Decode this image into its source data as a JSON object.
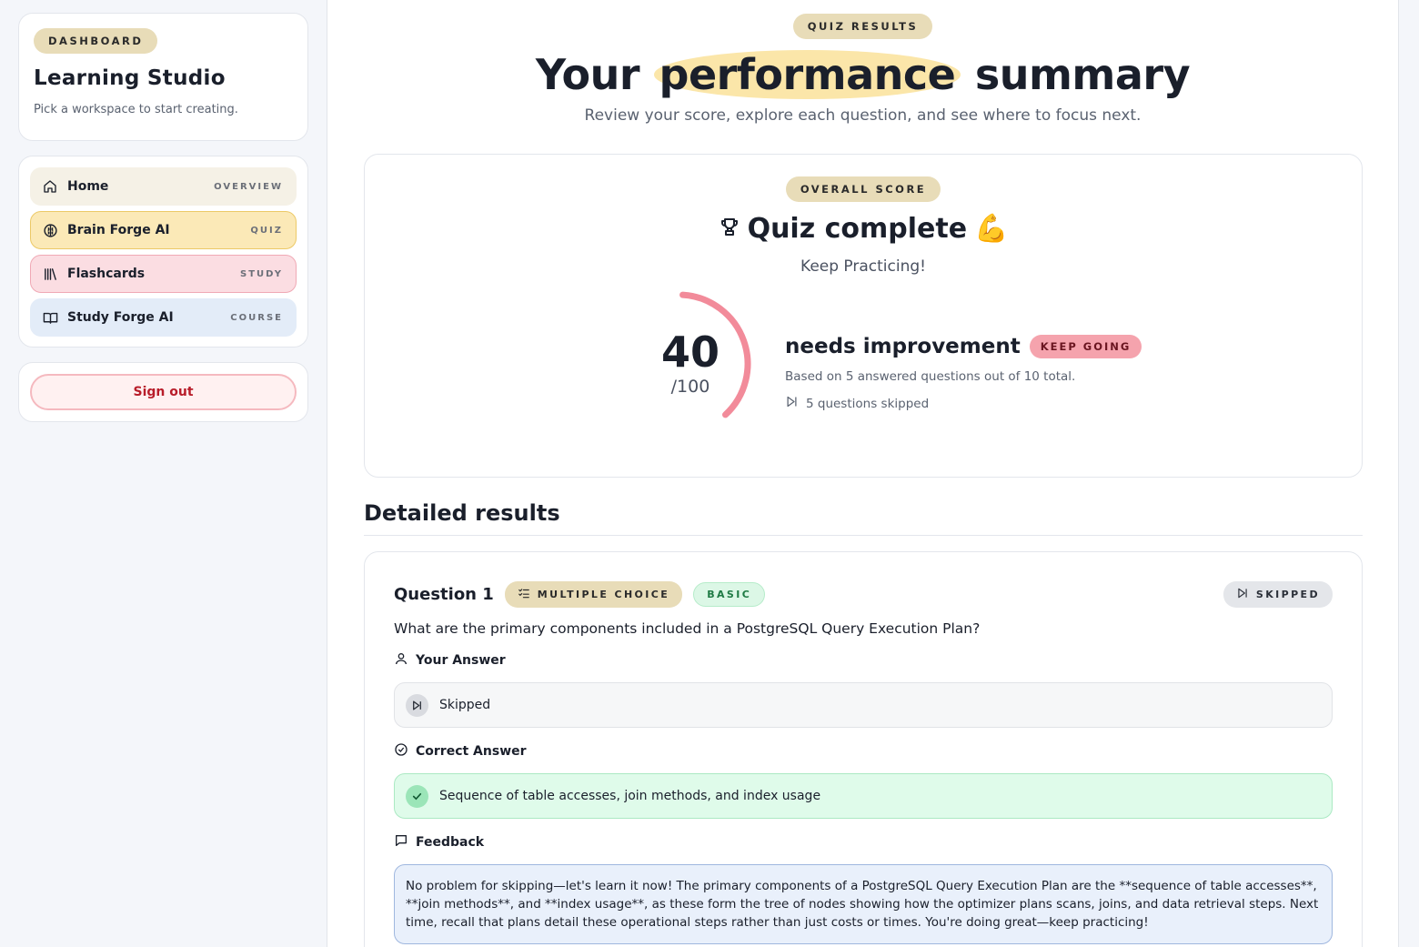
{
  "sidebar": {
    "badge": "DASHBOARD",
    "title": "Learning Studio",
    "subtitle": "Pick a workspace to start creating.",
    "items": [
      {
        "label": "Home",
        "tag": "OVERVIEW",
        "icon": "home-icon"
      },
      {
        "label": "Brain Forge AI",
        "tag": "QUIZ",
        "icon": "brain-icon"
      },
      {
        "label": "Flashcards",
        "tag": "STUDY",
        "icon": "library-icon"
      },
      {
        "label": "Study Forge AI",
        "tag": "COURSE",
        "icon": "book-icon"
      }
    ],
    "signout": "Sign out"
  },
  "hero": {
    "badge": "QUIZ RESULTS",
    "title_pre": "Your",
    "title_highlight": "performance",
    "title_post": "summary",
    "subtitle": "Review your score, explore each question, and see where to focus next."
  },
  "score": {
    "badge": "OVERALL SCORE",
    "title": "Quiz complete",
    "emoji": "💪",
    "subtitle": "Keep Practicing!",
    "value": "40",
    "max": "/100",
    "fraction": 0.4,
    "level": "needs improvement",
    "level_badge": "KEEP GOING",
    "based_on": "Based on 5 answered questions out of 10 total.",
    "skipped": "5 questions skipped"
  },
  "details": {
    "title": "Detailed results",
    "question": {
      "number": "Question 1",
      "type": "MULTIPLE CHOICE",
      "difficulty": "BASIC",
      "status": "SKIPPED",
      "text": "What are the primary components included in a PostgreSQL Query Execution Plan?",
      "your_answer_label": "Your Answer",
      "your_answer": "Skipped",
      "correct_label": "Correct Answer",
      "correct_answer": "Sequence of table accesses, join methods, and index usage",
      "feedback_label": "Feedback",
      "feedback": "No problem for skipping—let's learn it now! The primary components of a PostgreSQL Query Execution Plan are the **sequence of table accesses**, **join methods**, and **index usage**, as these form the tree of nodes showing how the optimizer plans scans, joins, and data retrieval steps. Next time, recall that plans detail these operational steps rather than just costs or times. You're doing great—keep practicing!"
    }
  },
  "colors": {
    "gauge": "#f28b9a",
    "highlight": "#fbe6a9",
    "quiz_active": "#fbe9b7"
  }
}
